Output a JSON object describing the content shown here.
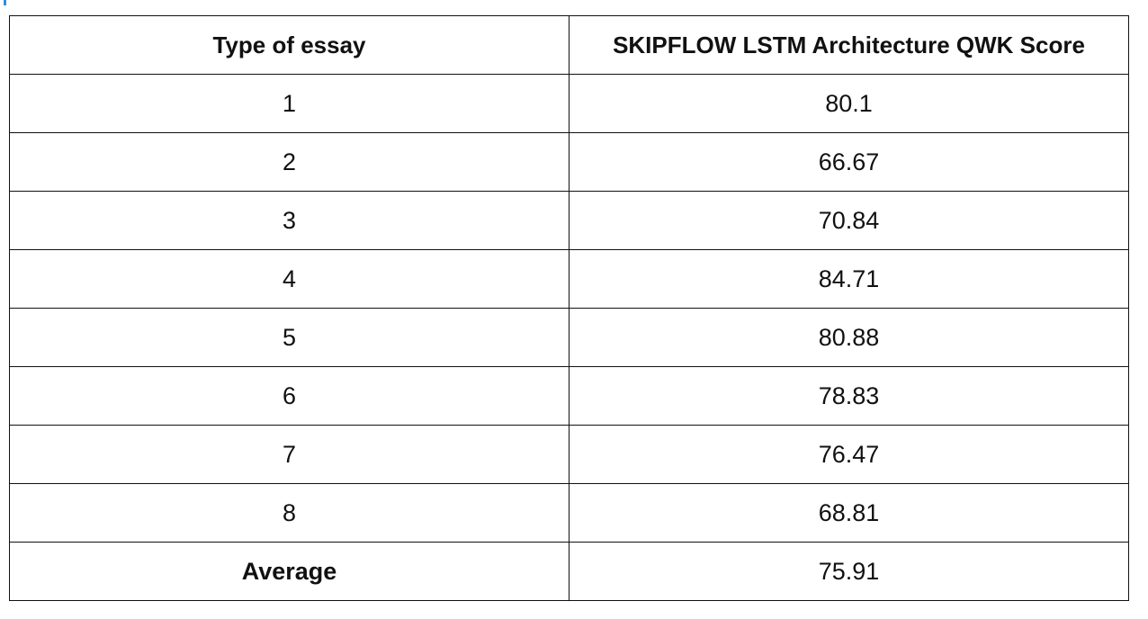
{
  "table": {
    "headers": {
      "type": "Type of essay",
      "score": "SKIPFLOW LSTM Architecture QWK Score"
    },
    "rows": [
      {
        "type": "1",
        "score": "80.1"
      },
      {
        "type": "2",
        "score": "66.67"
      },
      {
        "type": "3",
        "score": "70.84"
      },
      {
        "type": "4",
        "score": "84.71"
      },
      {
        "type": "5",
        "score": "80.88"
      },
      {
        "type": "6",
        "score": "78.83"
      },
      {
        "type": "7",
        "score": "76.47"
      },
      {
        "type": "8",
        "score": "68.81"
      }
    ],
    "average": {
      "label": "Average",
      "score": "75.91"
    }
  },
  "colors": {
    "border": "#111111",
    "accent": "#2f8fdc"
  }
}
